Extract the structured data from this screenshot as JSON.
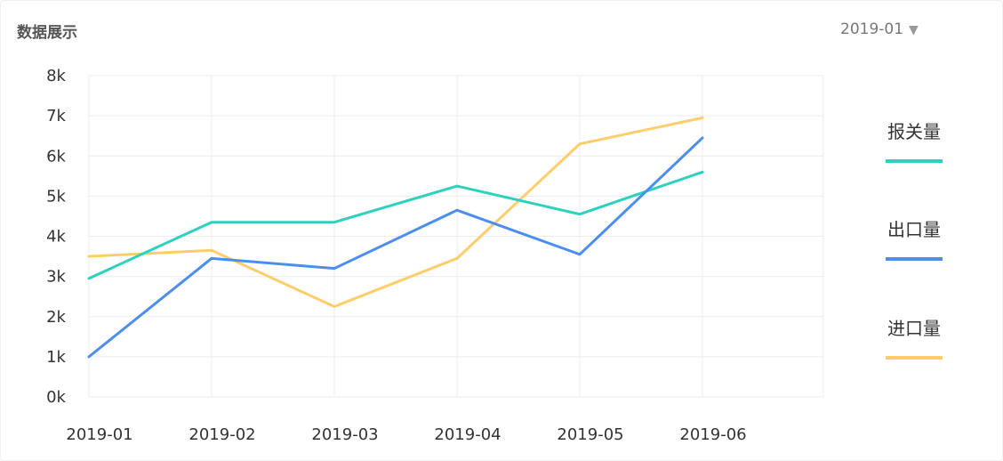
{
  "card": {
    "title": "数据展示",
    "month_select": {
      "value": "2019-01",
      "arrow": "▼"
    }
  },
  "chart_data": {
    "type": "line",
    "categories": [
      "2019-01",
      "2019-02",
      "2019-03",
      "2019-04",
      "2019-05",
      "2019-06"
    ],
    "y_ticks": [
      "0k",
      "1k",
      "2k",
      "3k",
      "4k",
      "5k",
      "6k",
      "7k",
      "8k"
    ],
    "ylim": [
      0,
      8000
    ],
    "grid": true,
    "legend_position": "right",
    "series": [
      {
        "name": "报关量",
        "color": "#2ed1bd",
        "values": [
          2950,
          4350,
          4350,
          5250,
          4550,
          5600
        ]
      },
      {
        "name": "出口量",
        "color": "#4b8ef0",
        "values": [
          1000,
          3450,
          3200,
          4650,
          3550,
          6450
        ]
      },
      {
        "name": "进口量",
        "color": "#ffcd6a",
        "values": [
          3500,
          3650,
          2250,
          3450,
          6300,
          6950
        ]
      }
    ]
  }
}
